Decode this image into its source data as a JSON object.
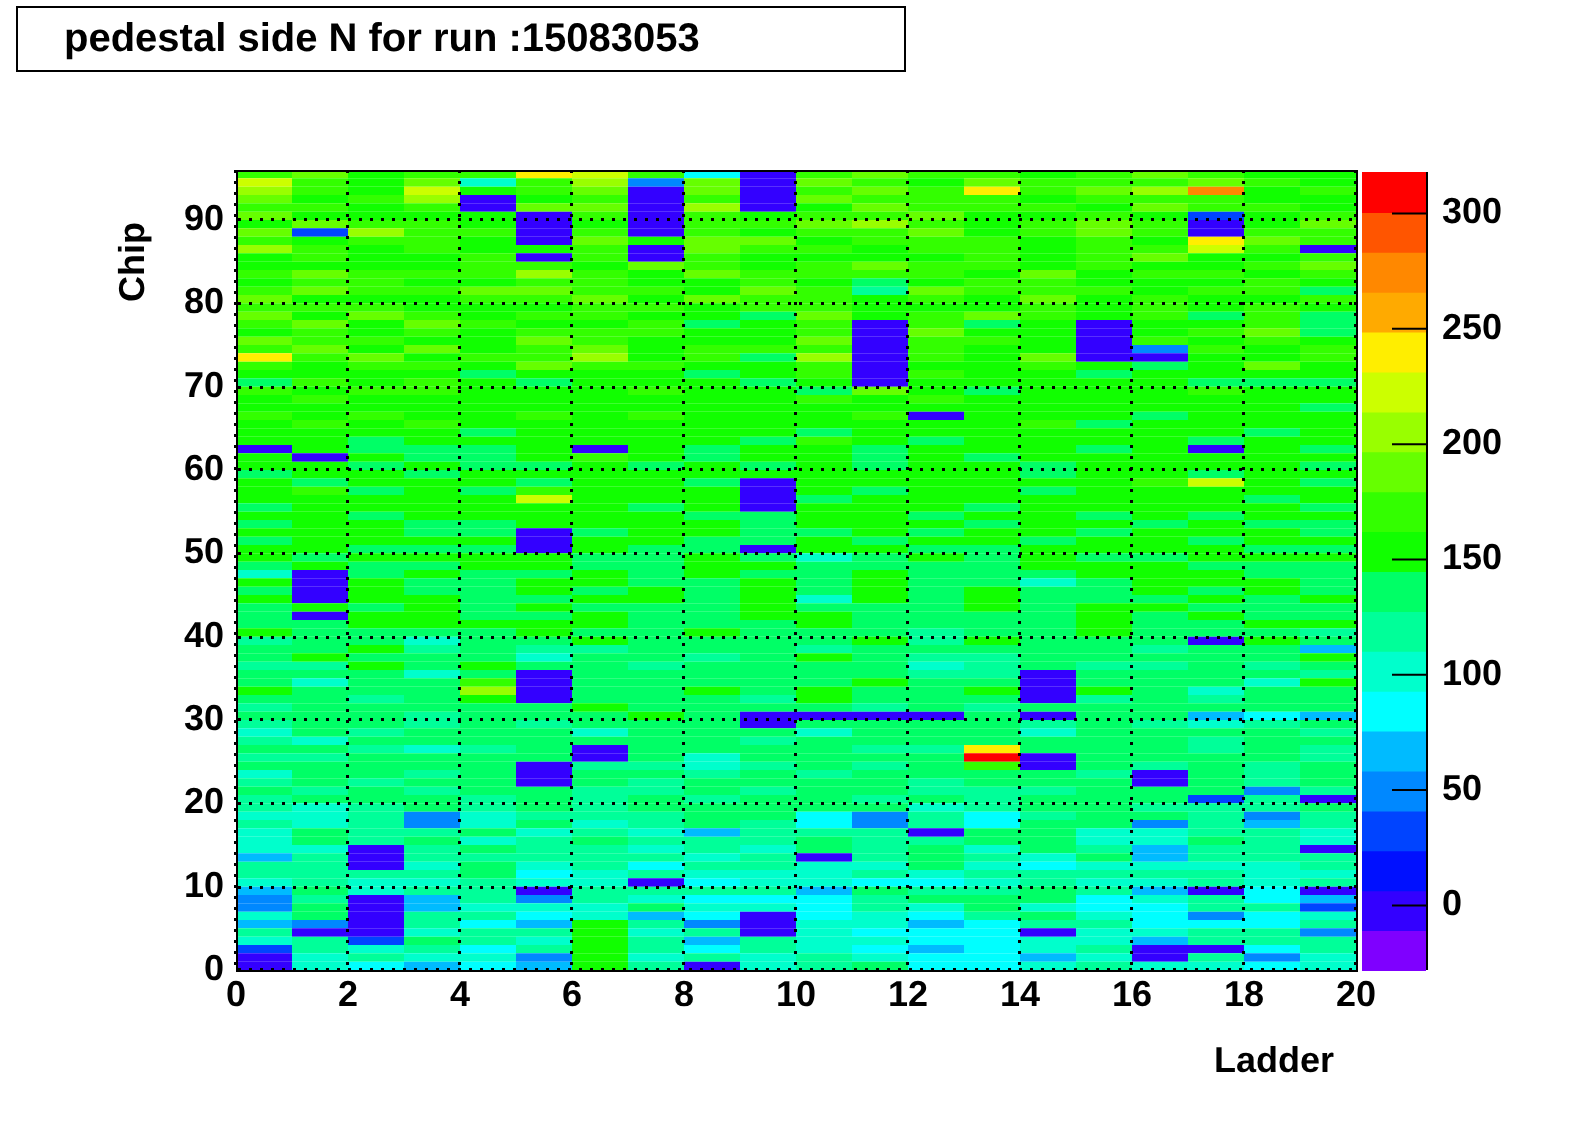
{
  "chart_data": {
    "type": "heatmap",
    "title": "pedestal side N for run :15083053",
    "xlabel": "Ladder",
    "ylabel": "Chip",
    "xlim": [
      0,
      20
    ],
    "ylim": [
      0,
      96
    ],
    "xticks": [
      0,
      2,
      4,
      6,
      8,
      10,
      12,
      14,
      16,
      18,
      20
    ],
    "yticks": [
      0,
      10,
      20,
      30,
      40,
      50,
      60,
      70,
      80,
      90
    ],
    "clim": [
      -28,
      318
    ],
    "cticks": [
      0,
      50,
      100,
      150,
      200,
      250,
      300
    ],
    "grid": true,
    "colors": [
      "#7f00ff",
      "#3300ff",
      "#0010ff",
      "#0044ff",
      "#0088ff",
      "#00bbff",
      "#00ffff",
      "#00ffcc",
      "#00ff99",
      "#00ff66",
      "#11ff00",
      "#33ff00",
      "#66ff00",
      "#99ff00",
      "#ccff00",
      "#ffee00",
      "#ffaa00",
      "#ff8800",
      "#ff5500",
      "#ff0000"
    ],
    "cells": [
      [
        175,
        190,
        155,
        175,
        175,
        245,
        225,
        175,
        85,
        0,
        175,
        190,
        175,
        175,
        155,
        175,
        190,
        175,
        155,
        155
      ],
      [
        225,
        175,
        155,
        190,
        105,
        175,
        210,
        50,
        190,
        0,
        190,
        175,
        155,
        190,
        175,
        175,
        175,
        190,
        175,
        155
      ],
      [
        210,
        175,
        155,
        225,
        155,
        175,
        190,
        0,
        190,
        0,
        175,
        190,
        175,
        245,
        175,
        190,
        210,
        280,
        155,
        175
      ],
      [
        190,
        155,
        175,
        210,
        0,
        155,
        175,
        0,
        175,
        0,
        190,
        175,
        175,
        175,
        155,
        175,
        175,
        175,
        155,
        155
      ],
      [
        175,
        175,
        155,
        175,
        0,
        190,
        190,
        0,
        210,
        0,
        155,
        190,
        175,
        175,
        175,
        155,
        190,
        175,
        175,
        155
      ],
      [
        190,
        155,
        155,
        155,
        155,
        0,
        175,
        0,
        175,
        155,
        175,
        175,
        190,
        155,
        155,
        175,
        155,
        40,
        155,
        175
      ],
      [
        155,
        190,
        175,
        175,
        155,
        0,
        155,
        0,
        175,
        175,
        190,
        210,
        175,
        155,
        175,
        190,
        175,
        0,
        155,
        190
      ],
      [
        190,
        35,
        210,
        175,
        175,
        0,
        175,
        0,
        175,
        155,
        175,
        175,
        190,
        155,
        175,
        190,
        175,
        0,
        175,
        175
      ],
      [
        175,
        155,
        175,
        175,
        155,
        0,
        190,
        155,
        190,
        190,
        155,
        175,
        175,
        175,
        155,
        175,
        155,
        245,
        190,
        175
      ],
      [
        210,
        175,
        155,
        175,
        155,
        155,
        175,
        0,
        190,
        175,
        175,
        155,
        175,
        175,
        155,
        175,
        175,
        225,
        175,
        0
      ],
      [
        155,
        175,
        155,
        155,
        175,
        0,
        175,
        0,
        175,
        155,
        155,
        155,
        155,
        175,
        155,
        175,
        190,
        155,
        155,
        175
      ],
      [
        155,
        155,
        155,
        155,
        175,
        175,
        155,
        190,
        175,
        155,
        175,
        190,
        175,
        175,
        155,
        175,
        155,
        155,
        175,
        190
      ],
      [
        175,
        190,
        175,
        175,
        175,
        210,
        175,
        155,
        190,
        175,
        175,
        175,
        175,
        155,
        190,
        155,
        175,
        175,
        155,
        175
      ],
      [
        155,
        175,
        175,
        155,
        155,
        175,
        175,
        155,
        155,
        175,
        155,
        140,
        155,
        175,
        175,
        155,
        155,
        155,
        175,
        155
      ],
      [
        175,
        190,
        175,
        175,
        190,
        190,
        175,
        175,
        155,
        190,
        175,
        120,
        190,
        175,
        175,
        175,
        155,
        175,
        175,
        140
      ],
      [
        190,
        155,
        155,
        155,
        175,
        175,
        190,
        155,
        190,
        175,
        175,
        155,
        175,
        155,
        190,
        155,
        175,
        155,
        155,
        175
      ],
      [
        175,
        175,
        175,
        155,
        155,
        155,
        175,
        175,
        155,
        175,
        175,
        155,
        155,
        155,
        175,
        155,
        175,
        155,
        175,
        155
      ],
      [
        190,
        155,
        190,
        175,
        155,
        175,
        175,
        155,
        155,
        140,
        190,
        155,
        175,
        190,
        175,
        155,
        175,
        140,
        175,
        140
      ],
      [
        175,
        190,
        155,
        190,
        175,
        155,
        155,
        175,
        140,
        155,
        175,
        0,
        175,
        140,
        155,
        0,
        155,
        155,
        175,
        140
      ],
      [
        155,
        175,
        155,
        175,
        155,
        175,
        175,
        175,
        155,
        155,
        175,
        0,
        190,
        155,
        155,
        0,
        155,
        175,
        190,
        140
      ],
      [
        190,
        175,
        175,
        155,
        155,
        190,
        175,
        155,
        155,
        155,
        190,
        0,
        175,
        175,
        155,
        0,
        175,
        155,
        175,
        155
      ],
      [
        175,
        190,
        155,
        190,
        155,
        175,
        190,
        155,
        175,
        175,
        175,
        0,
        175,
        155,
        155,
        0,
        50,
        175,
        155,
        175
      ],
      [
        245,
        175,
        190,
        155,
        175,
        175,
        210,
        155,
        175,
        140,
        210,
        0,
        175,
        155,
        190,
        0,
        0,
        155,
        155,
        175
      ],
      [
        175,
        155,
        175,
        175,
        155,
        190,
        175,
        175,
        155,
        155,
        175,
        0,
        155,
        155,
        175,
        155,
        140,
        155,
        190,
        155
      ],
      [
        155,
        155,
        155,
        155,
        140,
        155,
        155,
        155,
        140,
        155,
        175,
        0,
        175,
        155,
        155,
        140,
        155,
        155,
        155,
        155
      ],
      [
        140,
        175,
        155,
        175,
        155,
        140,
        155,
        155,
        155,
        140,
        155,
        0,
        155,
        155,
        155,
        155,
        155,
        140,
        140,
        140
      ],
      [
        175,
        155,
        175,
        175,
        155,
        155,
        155,
        175,
        155,
        155,
        140,
        190,
        155,
        140,
        155,
        155,
        155,
        175,
        155,
        155
      ],
      [
        155,
        175,
        155,
        155,
        155,
        155,
        155,
        155,
        155,
        155,
        175,
        155,
        175,
        155,
        155,
        155,
        155,
        155,
        155,
        155
      ],
      [
        155,
        155,
        155,
        155,
        155,
        155,
        155,
        155,
        155,
        155,
        155,
        155,
        155,
        155,
        155,
        155,
        155,
        155,
        155,
        140
      ],
      [
        175,
        155,
        175,
        155,
        155,
        175,
        155,
        175,
        155,
        155,
        155,
        175,
        0,
        155,
        155,
        155,
        140,
        155,
        155,
        155
      ],
      [
        155,
        175,
        155,
        175,
        155,
        155,
        155,
        155,
        155,
        155,
        155,
        155,
        155,
        155,
        175,
        140,
        155,
        155,
        155,
        155
      ],
      [
        155,
        155,
        155,
        155,
        140,
        155,
        155,
        155,
        155,
        155,
        140,
        155,
        155,
        155,
        155,
        155,
        155,
        155,
        140,
        155
      ],
      [
        155,
        155,
        140,
        155,
        155,
        155,
        155,
        155,
        155,
        140,
        175,
        155,
        140,
        155,
        155,
        155,
        155,
        140,
        155,
        155
      ],
      [
        0,
        155,
        140,
        140,
        140,
        155,
        0,
        155,
        140,
        155,
        155,
        140,
        155,
        155,
        155,
        140,
        155,
        0,
        155,
        140
      ],
      [
        155,
        0,
        155,
        140,
        140,
        155,
        175,
        155,
        140,
        155,
        155,
        140,
        155,
        140,
        155,
        155,
        155,
        155,
        155,
        155
      ],
      [
        155,
        155,
        140,
        155,
        140,
        140,
        155,
        140,
        155,
        140,
        155,
        140,
        155,
        155,
        140,
        155,
        155,
        155,
        155,
        140
      ],
      [
        140,
        155,
        155,
        140,
        155,
        155,
        155,
        155,
        155,
        155,
        155,
        155,
        155,
        155,
        140,
        155,
        155,
        140,
        155,
        155
      ],
      [
        155,
        140,
        155,
        155,
        155,
        140,
        155,
        155,
        140,
        0,
        155,
        155,
        155,
        155,
        155,
        155,
        175,
        225,
        155,
        140
      ],
      [
        155,
        175,
        140,
        155,
        140,
        175,
        155,
        155,
        155,
        0,
        155,
        140,
        155,
        155,
        140,
        155,
        155,
        155,
        155,
        155
      ],
      [
        155,
        155,
        155,
        155,
        155,
        225,
        155,
        155,
        155,
        0,
        140,
        155,
        155,
        155,
        155,
        155,
        155,
        155,
        140,
        155
      ],
      [
        140,
        155,
        155,
        155,
        155,
        155,
        155,
        140,
        155,
        0,
        155,
        155,
        155,
        140,
        155,
        155,
        155,
        155,
        155,
        140
      ],
      [
        155,
        155,
        140,
        155,
        155,
        155,
        155,
        155,
        140,
        140,
        155,
        155,
        140,
        155,
        155,
        140,
        155,
        140,
        155,
        155
      ],
      [
        140,
        155,
        155,
        140,
        140,
        155,
        155,
        155,
        155,
        140,
        155,
        155,
        155,
        140,
        155,
        155,
        140,
        155,
        140,
        140
      ],
      [
        155,
        155,
        155,
        140,
        140,
        0,
        140,
        155,
        155,
        140,
        140,
        155,
        140,
        155,
        155,
        140,
        155,
        155,
        155,
        140
      ],
      [
        140,
        155,
        155,
        155,
        155,
        0,
        155,
        155,
        140,
        140,
        155,
        140,
        155,
        155,
        140,
        155,
        155,
        140,
        155,
        155
      ],
      [
        155,
        155,
        140,
        140,
        140,
        0,
        155,
        140,
        140,
        0,
        155,
        155,
        140,
        140,
        155,
        155,
        155,
        155,
        140,
        140
      ],
      [
        155,
        140,
        155,
        155,
        155,
        155,
        140,
        140,
        155,
        140,
        105,
        140,
        155,
        140,
        155,
        140,
        140,
        155,
        155,
        155
      ],
      [
        140,
        155,
        140,
        140,
        155,
        155,
        140,
        140,
        155,
        155,
        140,
        140,
        140,
        140,
        155,
        155,
        155,
        140,
        140,
        140
      ],
      [
        105,
        0,
        140,
        155,
        140,
        140,
        155,
        140,
        155,
        140,
        140,
        155,
        140,
        140,
        140,
        155,
        155,
        155,
        140,
        140
      ],
      [
        155,
        0,
        155,
        140,
        140,
        155,
        155,
        140,
        140,
        155,
        140,
        155,
        140,
        140,
        105,
        140,
        155,
        155,
        155,
        140
      ],
      [
        140,
        0,
        155,
        140,
        140,
        155,
        140,
        155,
        140,
        155,
        140,
        155,
        140,
        155,
        140,
        140,
        155,
        140,
        155,
        140
      ],
      [
        155,
        0,
        155,
        155,
        140,
        140,
        155,
        155,
        140,
        155,
        105,
        155,
        140,
        155,
        140,
        140,
        140,
        155,
        140,
        155
      ],
      [
        140,
        155,
        140,
        155,
        140,
        155,
        140,
        140,
        140,
        155,
        140,
        140,
        140,
        155,
        140,
        155,
        155,
        140,
        140,
        140
      ],
      [
        140,
        0,
        155,
        155,
        140,
        140,
        155,
        140,
        140,
        155,
        155,
        140,
        140,
        140,
        140,
        155,
        140,
        155,
        140,
        140
      ],
      [
        140,
        140,
        155,
        155,
        155,
        155,
        155,
        140,
        140,
        140,
        155,
        140,
        140,
        140,
        140,
        155,
        140,
        140,
        155,
        155
      ],
      [
        155,
        140,
        140,
        140,
        140,
        155,
        140,
        140,
        155,
        140,
        140,
        140,
        120,
        140,
        140,
        155,
        140,
        140,
        140,
        120
      ],
      [
        120,
        140,
        140,
        105,
        140,
        140,
        155,
        140,
        140,
        140,
        140,
        155,
        120,
        155,
        140,
        140,
        140,
        0,
        155,
        140
      ],
      [
        140,
        140,
        155,
        120,
        140,
        120,
        120,
        140,
        140,
        140,
        120,
        140,
        140,
        140,
        140,
        140,
        120,
        140,
        140,
        70
      ],
      [
        140,
        155,
        140,
        140,
        140,
        105,
        140,
        140,
        120,
        140,
        155,
        140,
        120,
        120,
        140,
        140,
        140,
        140,
        140,
        155
      ],
      [
        120,
        120,
        155,
        140,
        155,
        140,
        140,
        120,
        140,
        140,
        140,
        140,
        105,
        120,
        140,
        120,
        120,
        140,
        120,
        140
      ],
      [
        140,
        140,
        140,
        105,
        140,
        0,
        140,
        140,
        140,
        140,
        140,
        140,
        120,
        120,
        0,
        140,
        140,
        140,
        140,
        120
      ],
      [
        140,
        105,
        140,
        140,
        175,
        0,
        140,
        140,
        140,
        140,
        140,
        155,
        140,
        140,
        0,
        140,
        140,
        140,
        105,
        155
      ],
      [
        155,
        140,
        140,
        140,
        210,
        0,
        140,
        140,
        155,
        140,
        155,
        140,
        140,
        155,
        0,
        155,
        140,
        105,
        140,
        140
      ],
      [
        140,
        140,
        120,
        140,
        155,
        0,
        140,
        140,
        140,
        120,
        155,
        140,
        140,
        140,
        0,
        120,
        140,
        120,
        140,
        140
      ],
      [
        120,
        140,
        140,
        140,
        140,
        140,
        155,
        140,
        140,
        140,
        140,
        120,
        140,
        120,
        140,
        140,
        140,
        140,
        140,
        140
      ],
      [
        140,
        140,
        140,
        120,
        140,
        140,
        140,
        155,
        140,
        0,
        0,
        0,
        0,
        140,
        0,
        140,
        140,
        70,
        85,
        70
      ],
      [
        120,
        140,
        140,
        120,
        140,
        120,
        140,
        140,
        140,
        0,
        140,
        140,
        140,
        140,
        120,
        140,
        120,
        105,
        120,
        140
      ],
      [
        105,
        140,
        120,
        140,
        140,
        140,
        105,
        140,
        140,
        140,
        105,
        140,
        140,
        140,
        105,
        140,
        140,
        140,
        140,
        120
      ],
      [
        120,
        105,
        140,
        140,
        140,
        140,
        140,
        140,
        140,
        120,
        140,
        140,
        140,
        140,
        140,
        140,
        140,
        120,
        140,
        140
      ],
      [
        140,
        140,
        120,
        105,
        120,
        140,
        0,
        140,
        140,
        140,
        140,
        120,
        120,
        245,
        140,
        140,
        140,
        120,
        140,
        120
      ],
      [
        120,
        120,
        140,
        140,
        140,
        140,
        0,
        140,
        105,
        140,
        140,
        140,
        140,
        315,
        0,
        140,
        140,
        140,
        140,
        120
      ],
      [
        140,
        140,
        140,
        140,
        140,
        0,
        120,
        120,
        105,
        120,
        140,
        120,
        140,
        175,
        0,
        140,
        120,
        140,
        120,
        140
      ],
      [
        105,
        140,
        140,
        120,
        140,
        0,
        140,
        140,
        120,
        140,
        120,
        140,
        140,
        140,
        140,
        120,
        0,
        140,
        120,
        140
      ],
      [
        120,
        140,
        120,
        140,
        140,
        0,
        140,
        120,
        140,
        140,
        140,
        140,
        120,
        140,
        140,
        140,
        0,
        140,
        120,
        140
      ],
      [
        140,
        120,
        140,
        120,
        140,
        140,
        120,
        120,
        140,
        120,
        140,
        140,
        120,
        120,
        120,
        140,
        140,
        140,
        50,
        120
      ],
      [
        120,
        140,
        140,
        140,
        120,
        140,
        120,
        140,
        120,
        140,
        140,
        120,
        140,
        120,
        140,
        140,
        140,
        30,
        120,
        0
      ],
      [
        120,
        105,
        120,
        140,
        120,
        140,
        120,
        140,
        140,
        140,
        140,
        140,
        105,
        120,
        140,
        140,
        120,
        120,
        120,
        140
      ],
      [
        105,
        105,
        120,
        50,
        105,
        120,
        120,
        120,
        140,
        140,
        85,
        50,
        120,
        85,
        120,
        140,
        140,
        120,
        50,
        120
      ],
      [
        120,
        105,
        120,
        50,
        105,
        140,
        105,
        120,
        140,
        120,
        85,
        50,
        120,
        85,
        140,
        140,
        50,
        120,
        70,
        120
      ],
      [
        105,
        140,
        120,
        120,
        140,
        105,
        120,
        105,
        70,
        120,
        120,
        120,
        0,
        140,
        140,
        105,
        105,
        120,
        120,
        105
      ],
      [
        105,
        140,
        120,
        140,
        105,
        120,
        140,
        120,
        120,
        120,
        140,
        120,
        120,
        140,
        140,
        105,
        105,
        140,
        120,
        105
      ],
      [
        105,
        105,
        0,
        120,
        140,
        120,
        120,
        105,
        120,
        105,
        140,
        120,
        140,
        105,
        140,
        120,
        70,
        120,
        120,
        0
      ],
      [
        70,
        120,
        0,
        120,
        120,
        120,
        120,
        120,
        105,
        120,
        0,
        120,
        140,
        120,
        105,
        140,
        70,
        120,
        120,
        120
      ],
      [
        120,
        120,
        0,
        105,
        140,
        105,
        120,
        85,
        120,
        120,
        105,
        105,
        140,
        105,
        85,
        105,
        105,
        105,
        105,
        120
      ],
      [
        120,
        120,
        120,
        120,
        140,
        85,
        105,
        120,
        105,
        105,
        105,
        120,
        105,
        120,
        120,
        120,
        120,
        120,
        105,
        105
      ],
      [
        105,
        120,
        105,
        105,
        120,
        105,
        105,
        0,
        85,
        105,
        105,
        85,
        85,
        105,
        120,
        105,
        105,
        120,
        105,
        120
      ],
      [
        70,
        140,
        105,
        120,
        120,
        0,
        120,
        120,
        120,
        120,
        70,
        140,
        120,
        120,
        140,
        120,
        70,
        0,
        85,
        0
      ],
      [
        50,
        120,
        0,
        70,
        120,
        50,
        120,
        105,
        85,
        85,
        85,
        120,
        140,
        140,
        140,
        85,
        105,
        120,
        85,
        70
      ],
      [
        50,
        140,
        0,
        70,
        105,
        105,
        105,
        140,
        105,
        105,
        85,
        120,
        105,
        140,
        105,
        85,
        85,
        120,
        120,
        35
      ],
      [
        105,
        140,
        0,
        120,
        120,
        85,
        105,
        70,
        85,
        0,
        85,
        105,
        85,
        120,
        140,
        105,
        85,
        50,
        85,
        105
      ],
      [
        70,
        50,
        0,
        120,
        85,
        70,
        155,
        120,
        50,
        0,
        105,
        105,
        70,
        85,
        120,
        120,
        85,
        85,
        85,
        120
      ],
      [
        120,
        0,
        0,
        105,
        120,
        120,
        155,
        105,
        120,
        0,
        105,
        85,
        85,
        85,
        0,
        105,
        105,
        120,
        120,
        50
      ],
      [
        105,
        120,
        35,
        140,
        120,
        105,
        155,
        120,
        70,
        120,
        105,
        105,
        85,
        85,
        105,
        105,
        70,
        120,
        120,
        120
      ],
      [
        35,
        120,
        105,
        120,
        85,
        120,
        155,
        120,
        85,
        120,
        105,
        85,
        70,
        85,
        105,
        120,
        0,
        0,
        85,
        120
      ],
      [
        0,
        105,
        120,
        105,
        105,
        50,
        155,
        105,
        120,
        105,
        120,
        105,
        85,
        85,
        70,
        105,
        0,
        120,
        50,
        105
      ],
      [
        0,
        105,
        85,
        70,
        85,
        70,
        155,
        120,
        0,
        105,
        120,
        140,
        85,
        85,
        105,
        120,
        105,
        105,
        85,
        105
      ]
    ]
  }
}
